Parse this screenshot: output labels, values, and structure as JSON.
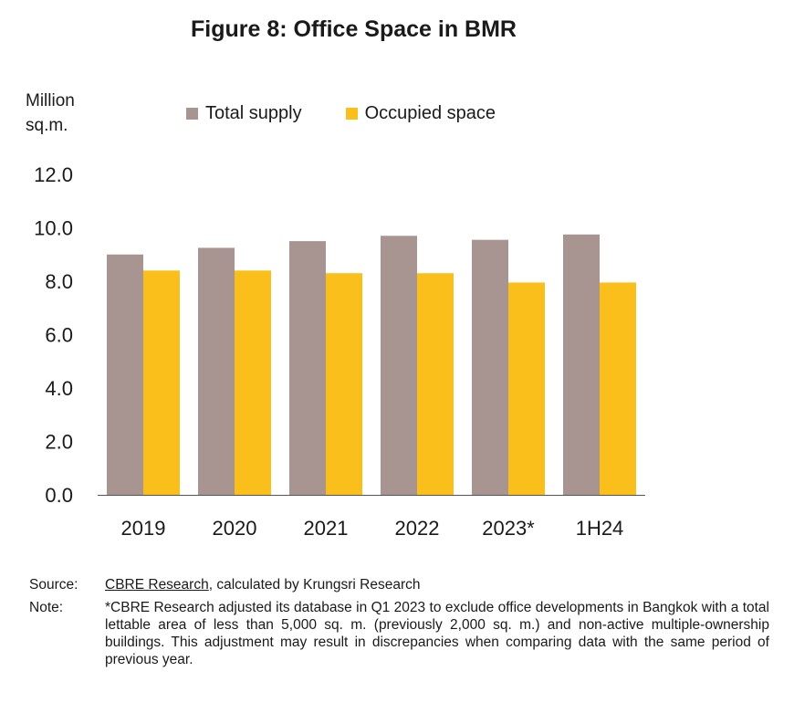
{
  "title": "Figure 8: Office Space in BMR",
  "unit_line1": "Million",
  "unit_line2": "sq.m.",
  "colors": {
    "total_supply": "#a89591",
    "occupied_space": "#fbbf1c",
    "axis": "#555555"
  },
  "chart_data": {
    "type": "bar",
    "categories": [
      "2019",
      "2020",
      "2021",
      "2022",
      "2023*",
      "1H24"
    ],
    "series": [
      {
        "name": "Total supply",
        "values": [
          9.0,
          9.25,
          9.5,
          9.7,
          9.55,
          9.75
        ]
      },
      {
        "name": "Occupied space",
        "values": [
          8.4,
          8.4,
          8.3,
          8.3,
          7.95,
          7.95
        ]
      }
    ],
    "ylabel": "Million sq.m.",
    "ylim": [
      0,
      12
    ],
    "yticks": [
      "0.0",
      "2.0",
      "4.0",
      "6.0",
      "8.0",
      "10.0",
      "12.0"
    ],
    "legend_position": "top",
    "grid": false
  },
  "source": {
    "label": "Source:",
    "link_text": "CBRE Research",
    "rest": ", calculated by Krungsri Research"
  },
  "note": {
    "label": "Note:",
    "text": "*CBRE Research adjusted its database in Q1 2023 to exclude office developments in Bangkok with a total lettable area of less than 5,000 sq. m. (previously 2,000 sq. m.) and non-active multiple-ownership buildings. This adjustment may result in discrepancies when comparing data with the same period of previous year."
  }
}
